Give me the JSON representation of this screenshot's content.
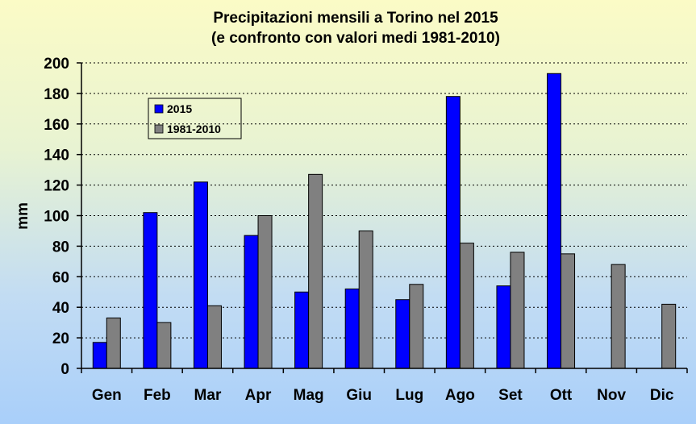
{
  "chart_data": {
    "type": "bar",
    "title": "Precipitazioni mensili a Torino nel 2015",
    "subtitle": "(e confronto con valori medi 1981-2010)",
    "xlabel": "",
    "ylabel": "mm",
    "ylim": [
      0,
      200
    ],
    "yticks": [
      "0",
      "20",
      "40",
      "60",
      "80",
      "100",
      "120",
      "140",
      "160",
      "180",
      "200"
    ],
    "grid": true,
    "legend_position": "top-left",
    "categories": [
      "Gen",
      "Feb",
      "Mar",
      "Apr",
      "Mag",
      "Giu",
      "Lug",
      "Ago",
      "Set",
      "Ott",
      "Nov",
      "Dic"
    ],
    "series": [
      {
        "name": "2015",
        "color": "#0000ff",
        "values": [
          17,
          102,
          122,
          87,
          50,
          52,
          45,
          178,
          54,
          193,
          0,
          0
        ]
      },
      {
        "name": "1981-2010",
        "color": "#808080",
        "values": [
          33,
          30,
          41,
          100,
          127,
          90,
          55,
          82,
          76,
          75,
          68,
          42
        ]
      }
    ]
  }
}
